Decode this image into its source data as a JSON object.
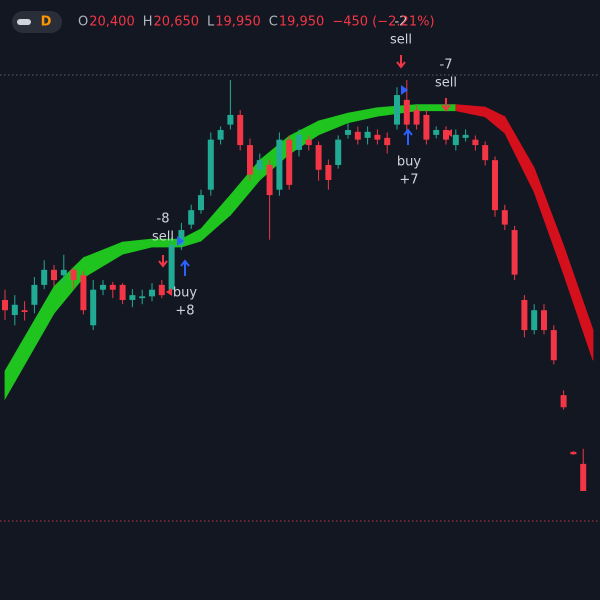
{
  "chart_data": {
    "type": "candlestick",
    "interval": "D",
    "legend": [
      {
        "label": "O",
        "value": "20,400"
      },
      {
        "label": "H",
        "value": "20,650"
      },
      {
        "label": "L",
        "value": "19,950"
      },
      {
        "label": "C",
        "value": "19,950"
      }
    ],
    "change": "−450 (−2.21%)",
    "up_color": "#22ab94",
    "down_color": "#f23645",
    "candles": {
      "open": [
        23120,
        22870,
        22950,
        23040,
        23370,
        23620,
        23530,
        23620,
        23530,
        22700,
        23290,
        23370,
        23370,
        23120,
        23150,
        23180,
        23370,
        23290,
        24030,
        24370,
        24610,
        24950,
        25780,
        26030,
        26190,
        25690,
        25280,
        25360,
        24950,
        25780,
        25610,
        25780,
        25690,
        25360,
        25360,
        25860,
        25910,
        25810,
        25860,
        25810,
        26030,
        26440,
        26270,
        26190,
        25860,
        25940,
        25690,
        25810,
        25780,
        25690,
        25440,
        24610,
        24280,
        23120,
        22620,
        22950,
        22620,
        21540,
        20600,
        20400
      ],
      "high": [
        23290,
        23200,
        23100,
        23500,
        23780,
        23700,
        23870,
        23650,
        23600,
        23450,
        23450,
        23420,
        23400,
        23300,
        23290,
        23400,
        23450,
        24150,
        24400,
        24700,
        24950,
        25900,
        26000,
        26770,
        26270,
        25800,
        25550,
        25450,
        25900,
        25850,
        25950,
        25850,
        25750,
        25450,
        25850,
        26050,
        26000,
        26000,
        25950,
        25900,
        26650,
        26770,
        26350,
        26270,
        26000,
        26000,
        25950,
        25950,
        25850,
        25750,
        25500,
        24700,
        24350,
        23200,
        23050,
        23050,
        22700,
        21620,
        20610,
        20650
      ],
      "low": [
        22790,
        22700,
        22780,
        22900,
        23300,
        23350,
        23400,
        23300,
        22880,
        22620,
        23200,
        23150,
        23050,
        23000,
        23050,
        23100,
        23150,
        23200,
        23950,
        24300,
        24550,
        24850,
        25700,
        25950,
        25600,
        25100,
        25200,
        24120,
        24850,
        24950,
        25500,
        25600,
        25100,
        24950,
        25300,
        25800,
        25700,
        25700,
        25700,
        25550,
        25950,
        25900,
        25950,
        25700,
        25800,
        25700,
        25600,
        25750,
        25600,
        25350,
        24500,
        24280,
        23450,
        22500,
        22550,
        22550,
        22050,
        21300,
        20550,
        19950
      ],
      "close": [
        22950,
        23040,
        22920,
        23370,
        23620,
        23450,
        23620,
        23450,
        22950,
        23290,
        23370,
        23290,
        23120,
        23200,
        23180,
        23290,
        23200,
        24030,
        24280,
        24610,
        24860,
        25780,
        25940,
        26190,
        25690,
        25200,
        25440,
        24860,
        25780,
        25030,
        25860,
        25690,
        25280,
        25110,
        25780,
        25940,
        25780,
        25910,
        25780,
        25690,
        26520,
        26030,
        26030,
        25780,
        25940,
        25780,
        25860,
        25860,
        25690,
        25440,
        24610,
        24370,
        23540,
        22620,
        22950,
        22620,
        22120,
        21340,
        20560,
        19950
      ]
    },
    "band": {
      "rising_color": "#1fc41f",
      "falling_color": "#d4101c",
      "x": [
        0,
        5,
        8,
        12,
        15,
        18,
        20,
        23,
        26,
        29,
        32,
        35,
        38,
        42,
        46,
        49,
        51,
        54,
        57,
        60
      ],
      "upper": [
        21940,
        23340,
        23820,
        24080,
        24130,
        24130,
        24300,
        24860,
        25440,
        25840,
        26090,
        26220,
        26310,
        26360,
        26360,
        26320,
        26160,
        25310,
        24020,
        22620
      ],
      "lower": [
        21480,
        22900,
        23490,
        23880,
        24000,
        24000,
        24100,
        24530,
        25110,
        25540,
        25860,
        26060,
        26170,
        26260,
        26260,
        26160,
        25890,
        24910,
        23550,
        22120
      ]
    },
    "signals": [
      {
        "qty": "-8",
        "side": "sell"
      },
      {
        "side": "buy",
        "qty": "+8"
      },
      {
        "qty": "-2",
        "side": "sell"
      },
      {
        "side": "buy",
        "qty": "+7"
      },
      {
        "qty": "-7",
        "side": "sell"
      }
    ]
  }
}
